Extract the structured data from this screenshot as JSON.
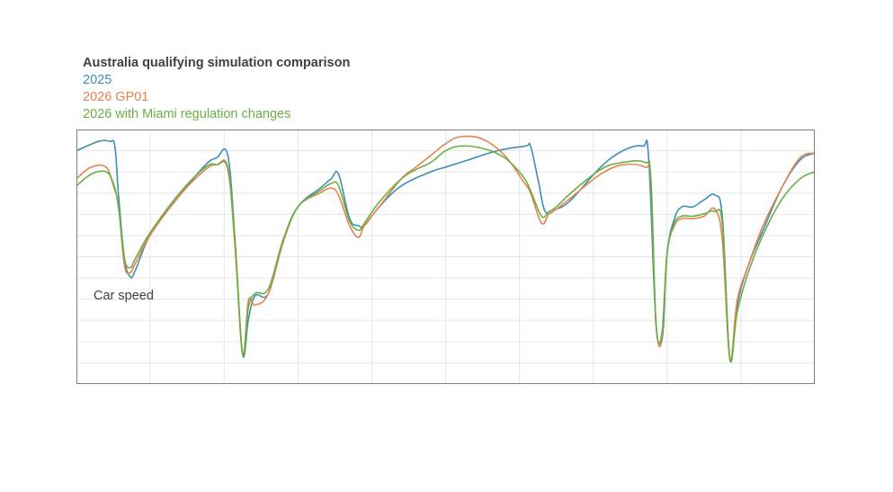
{
  "chart_data": {
    "type": "line",
    "title": "Australia qualifying simulation comparison",
    "xlabel": "",
    "ylabel": "",
    "annotation": "Car speed",
    "grid": true,
    "legend_position": "top-left",
    "xlim": [
      0,
      100
    ],
    "ylim": [
      0,
      100
    ],
    "series": [
      {
        "name": "2025",
        "color": "#3E8EB5",
        "x": [
          0,
          3,
          4.5,
          5.2,
          5.7,
          6.5,
          7.3,
          8,
          10,
          14,
          17.5,
          19,
          20.5,
          21.5,
          22.5,
          23.3,
          24.2,
          26,
          28,
          30,
          33,
          34.5,
          35.5,
          37,
          38.2,
          39,
          41,
          44,
          48,
          50,
          53,
          57,
          60.8,
          61.5,
          62.5,
          63.5,
          65,
          67,
          71,
          74,
          76.7,
          77.5,
          78.5,
          79.4,
          80,
          81,
          82,
          83.5,
          85,
          86.5,
          87.5,
          88.5,
          89.5,
          91,
          93,
          95.5,
          98,
          100
        ],
        "y": [
          94,
          98,
          98,
          96,
          75,
          48,
          40,
          43,
          58,
          75,
          88,
          91,
          92,
          55,
          7,
          22,
          32,
          33,
          55,
          70,
          78,
          82,
          84,
          65,
          62,
          62,
          70,
          79,
          85,
          87,
          90,
          94,
          96,
          96,
          82,
          68,
          69,
          73,
          87,
          94,
          96,
          91,
          20,
          15,
          50,
          65,
          70,
          70,
          73,
          75,
          65,
          5,
          28,
          45,
          60,
          78,
          90,
          93
        ]
      },
      {
        "name": "2026 GP01",
        "color": "#E8814E",
        "x": [
          0,
          2,
          4,
          5,
          5.7,
          6.5,
          7.3,
          8,
          10,
          14,
          17.5,
          19,
          20.5,
          21.5,
          22.5,
          23.3,
          24.2,
          26,
          28,
          30,
          33,
          34.5,
          35.5,
          37,
          38.2,
          39,
          41,
          44,
          46,
          48,
          50,
          52,
          55,
          58,
          60.5,
          61.5,
          63,
          64,
          65,
          67,
          71,
          74,
          77,
          77.8,
          78.5,
          79.3,
          80,
          81,
          82,
          83.5,
          85,
          86.5,
          87.5,
          88.5,
          89.5,
          91,
          93,
          95.5,
          98,
          100
        ],
        "y": [
          82,
          87,
          87,
          79,
          70,
          45,
          42,
          46,
          58,
          75,
          86,
          88,
          87,
          54,
          7,
          30,
          28,
          33,
          55,
          70,
          76,
          78,
          75,
          62,
          57,
          62,
          70,
          82,
          87,
          92,
          97,
          100,
          99,
          92,
          81,
          76,
          63,
          67,
          69,
          74,
          84,
          88,
          87,
          81,
          20,
          14,
          50,
          62,
          65,
          65,
          66,
          69,
          55,
          5,
          30,
          45,
          62,
          78,
          91,
          93
        ]
      },
      {
        "name": "2026 with Miami regulation changes",
        "color": "#6AAF44",
        "x": [
          0,
          2,
          4,
          5,
          5.7,
          6.5,
          7.3,
          8,
          10,
          14,
          17.5,
          19,
          20.5,
          21.5,
          22.5,
          23.3,
          24.2,
          26,
          28,
          30,
          33,
          34.5,
          35.5,
          37,
          38.2,
          39,
          41,
          44,
          46,
          48,
          50,
          52,
          55,
          58,
          60.5,
          61.5,
          63,
          64,
          65,
          67,
          71,
          74,
          77,
          77.8,
          78.5,
          79.3,
          80,
          81,
          82,
          83.5,
          85,
          86.5,
          87.5,
          88.5,
          89.5,
          91,
          93,
          95.5,
          98,
          100
        ],
        "y": [
          79,
          84,
          85,
          80,
          70,
          48,
          44,
          48,
          59,
          76,
          87,
          88,
          86,
          52,
          7,
          27,
          33,
          35,
          56,
          70,
          77,
          80,
          79,
          64,
          60,
          63,
          72,
          82,
          86,
          89,
          94,
          96,
          95,
          91,
          83,
          77,
          66,
          68,
          70,
          76,
          86,
          89,
          89,
          82,
          20,
          16,
          50,
          63,
          66,
          66,
          67,
          68,
          62,
          5,
          25,
          42,
          58,
          73,
          82,
          85
        ]
      }
    ]
  }
}
